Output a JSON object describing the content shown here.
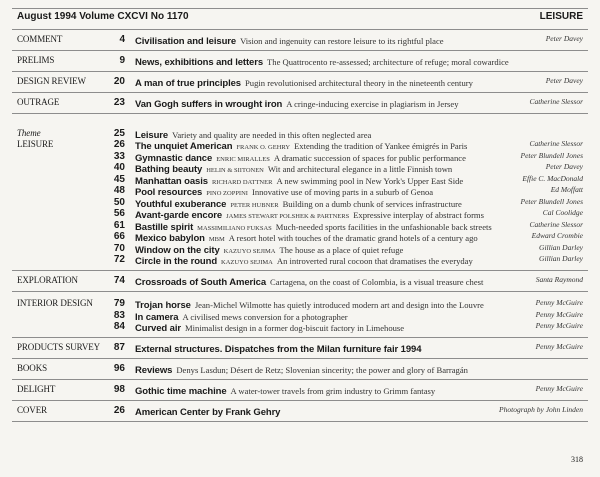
{
  "header": {
    "issue": "August 1994 Volume CXCVI No 1170",
    "theme": "LEISURE"
  },
  "groups": [
    {
      "labels": [
        "COMMENT"
      ],
      "entries": [
        {
          "page": "4",
          "title": "Civilisation and leisure",
          "desc": "Vision and ingenuity can restore leisure to its rightful place",
          "author": "Peter Davey"
        }
      ]
    },
    {
      "labels": [
        "PRELIMS"
      ],
      "entries": [
        {
          "page": "9",
          "title": "News, exhibitions and letters",
          "desc": "The Quattrocento re-assessed; architecture of refuge; moral cowardice"
        }
      ]
    },
    {
      "labels": [
        "DESIGN REVIEW"
      ],
      "entries": [
        {
          "page": "20",
          "title": "A man of true principles",
          "desc": "Pugin revolutionised architectural theory in the nineteenth century",
          "author": "Peter Davey"
        }
      ]
    },
    {
      "labels": [
        "OUTRAGE"
      ],
      "entries": [
        {
          "page": "23",
          "title": "Van Gogh suffers in wrought iron",
          "desc": "A cringe-inducing exercise in plagiarism in Jersey",
          "author": "Catherine Slessor"
        }
      ]
    },
    {
      "labels": [
        "Theme",
        "LEISURE"
      ],
      "entries": [
        {
          "page": "25",
          "title": "Leisure",
          "desc": "Variety and quality are needed in this often neglected area"
        },
        {
          "page": "26",
          "title": "The unquiet American",
          "architect": "Frank O. Gehry",
          "desc": "Extending the tradition of Yankee émigrés in Paris",
          "author": "Catherine Slessor"
        },
        {
          "page": "33",
          "title": "Gymnastic dance",
          "architect": "Enric Miralles",
          "desc": "A dramatic succession of spaces for public performance",
          "author": "Peter Blundell Jones"
        },
        {
          "page": "40",
          "title": "Bathing beauty",
          "architect": "Helin & Siitonen",
          "desc": "Wit and architectural elegance in a little Finnish town",
          "author": "Peter Davey"
        },
        {
          "page": "45",
          "title": "Manhattan oasis",
          "architect": "Richard Dattner",
          "desc": "A new swimming pool in New York's Upper East Side",
          "author": "Effie C. MacDonald"
        },
        {
          "page": "48",
          "title": "Pool resources",
          "architect": "Pino Zoppini",
          "desc": "Innovative use of moving parts in a suburb of Genoa",
          "author": "Ed Moffatt"
        },
        {
          "page": "50",
          "title": "Youthful exuberance",
          "architect": "Peter Hubner",
          "desc": "Building on a dumb chunk of services infrastructure",
          "author": "Peter Blundell Jones"
        },
        {
          "page": "56",
          "title": "Avant-garde encore",
          "architect": "James Stewart Polshek & Partners",
          "desc": "Expressive interplay of abstract forms",
          "author": "Cal Coolidge"
        },
        {
          "page": "61",
          "title": "Bastille spirit",
          "architect": "Massimiliano Fuksas",
          "desc": "Much-needed sports facilities in the unfashionable back streets",
          "author": "Catherine Slessor"
        },
        {
          "page": "66",
          "title": "Mexico babylon",
          "architect": "MBM",
          "desc": "A resort hotel with touches of the dramatic grand hotels of a century ago",
          "author": "Edward Crombie"
        },
        {
          "page": "70",
          "title": "Window on the city",
          "architect": "Kazuyo Sejima",
          "desc": "The house as a place of quiet refuge",
          "author": "Gillian Darley"
        },
        {
          "page": "72",
          "title": "Circle in the round",
          "architect": "Kazuyo Sejima",
          "desc": "An introverted rural cocoon that dramatises the everyday",
          "author": "Gillian Darley"
        }
      ]
    },
    {
      "labels": [
        "EXPLORATION"
      ],
      "entries": [
        {
          "page": "74",
          "title": "Crossroads of South America",
          "desc": "Cartagena, on the coast of Colombia, is a visual treasure chest",
          "author": "Santa Raymond"
        }
      ]
    },
    {
      "labels": [
        "INTERIOR DESIGN"
      ],
      "entries": [
        {
          "page": "79",
          "title": "Trojan horse",
          "desc": "Jean-Michel Wilmotte has quietly introduced modern art and design into the Louvre",
          "author": "Penny McGuire"
        },
        {
          "page": "83",
          "title": "In camera",
          "desc": "A civilised mews conversion for a photographer",
          "author": "Penny McGuire"
        },
        {
          "page": "84",
          "title": "Curved air",
          "desc": "Minimalist design in a former dog-biscuit factory in Limehouse",
          "author": "Penny McGuire"
        }
      ]
    },
    {
      "labels": [
        "PRODUCTS SURVEY"
      ],
      "entries": [
        {
          "page": "87",
          "title": "External structures. Dispatches from the Milan furniture fair 1994",
          "author": "Penny McGuire"
        }
      ]
    },
    {
      "labels": [
        "BOOKS"
      ],
      "entries": [
        {
          "page": "96",
          "title": "Reviews",
          "desc": "Denys Lasdun; Désert de Retz; Slovenian sincerity; the power and glory of Barragán"
        }
      ]
    },
    {
      "labels": [
        "DELIGHT"
      ],
      "entries": [
        {
          "page": "98",
          "title": "Gothic time machine",
          "desc": "A water-tower travels from grim industry to Grimm fantasy",
          "author": "Penny McGuire"
        }
      ]
    },
    {
      "labels": [
        "COVER"
      ],
      "entries": [
        {
          "page": "26",
          "title": "American Center by Frank Gehry",
          "author": "Photograph by John Linden"
        }
      ]
    }
  ],
  "folio": "318"
}
